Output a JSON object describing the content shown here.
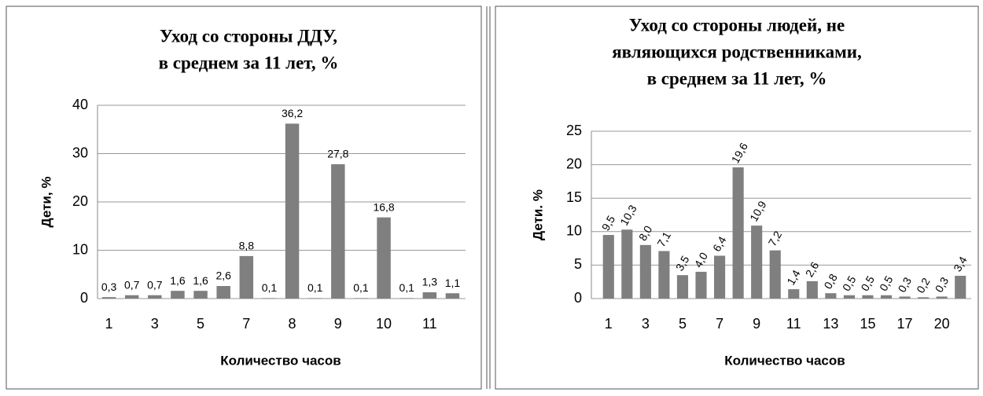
{
  "chart_data": [
    {
      "type": "bar",
      "title": [
        "Уход со стороны ДДУ,",
        "в среднем за 11 лет, %"
      ],
      "y_label": "Дети, %",
      "x_label": "Количество часов",
      "categories": [
        "1",
        null,
        "3",
        null,
        "5",
        null,
        "7",
        null,
        "8",
        null,
        "9",
        null,
        "10",
        null,
        "11",
        null
      ],
      "values": [
        0.3,
        0.7,
        0.7,
        1.6,
        1.6,
        2.6,
        8.8,
        0.1,
        36.2,
        0.1,
        27.8,
        0.1,
        16.8,
        0.1,
        1.3,
        1.1
      ],
      "value_labels": [
        "0,3",
        "0,7",
        "0,7",
        "1,6",
        "1,6",
        "2,6",
        "8,8",
        "0,1",
        "36,2",
        "0,1",
        "27,8",
        "0,1",
        "16,8",
        "0,1",
        "1,3",
        "1,1"
      ],
      "color": "#7f7f7f",
      "ylim": [
        0,
        40
      ],
      "yticks": [
        0,
        10,
        20,
        30,
        40
      ],
      "grid": true
    },
    {
      "type": "bar",
      "title": [
        "Уход со стороны людей, не",
        "являющихся родственниками,",
        "в среднем за 11 лет, %"
      ],
      "y_label": "Дети. %",
      "x_label": "Количество часов",
      "categories": [
        "1",
        null,
        "3",
        null,
        "5",
        null,
        "7",
        null,
        "9",
        null,
        "11",
        null,
        "13",
        null,
        "15",
        null,
        "17",
        null,
        "20",
        null
      ],
      "values": [
        9.5,
        10.3,
        8.0,
        7.1,
        3.5,
        4.0,
        6.4,
        19.6,
        10.9,
        7.2,
        1.4,
        2.6,
        0.8,
        0.5,
        0.5,
        0.5,
        0.3,
        0.2,
        0.3,
        3.4
      ],
      "value_labels": [
        "9,5",
        "10,3",
        "8,0",
        "7,1",
        "3,5",
        "4,0",
        "6,4",
        "19,6",
        "10,9",
        "7,2",
        "1,4",
        "2,6",
        "0,8",
        "0,5",
        "0,5",
        "0,5",
        "0,3",
        "0,2",
        "0,3",
        "3,4"
      ],
      "color": "#7f7f7f",
      "ylim": [
        0,
        25
      ],
      "yticks": [
        0,
        5,
        10,
        15,
        20,
        25
      ],
      "grid": true
    }
  ]
}
